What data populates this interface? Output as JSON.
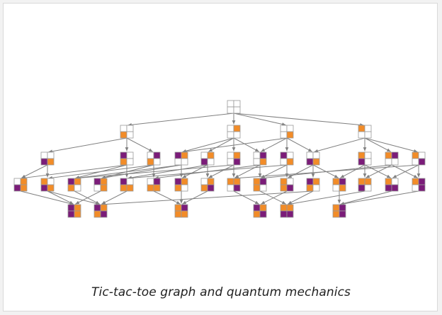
{
  "caption": "Tic-tac-toe graph and quantum mechanics",
  "colors": {
    "x_player": "#f28c28",
    "o_player": "#7b1c79",
    "empty_cell": "#ffffff",
    "cell_border": "#9a9a9a",
    "edge": "#808080",
    "background": "#ffffff"
  },
  "graph": {
    "board_size": "2x2",
    "cell_codes": "0 = empty, 1 = orange, 2 = purple",
    "levels": [
      {
        "level": 0,
        "boards": [
          {
            "id": "n0",
            "cells": [
              0,
              0,
              0,
              0
            ]
          }
        ]
      },
      {
        "level": 1,
        "boards": [
          {
            "id": "n1a",
            "cells": [
              0,
              0,
              1,
              0
            ]
          },
          {
            "id": "n1b",
            "cells": [
              0,
              1,
              0,
              0
            ]
          },
          {
            "id": "n1c",
            "cells": [
              0,
              0,
              0,
              1
            ]
          },
          {
            "id": "n1d",
            "cells": [
              1,
              0,
              0,
              0
            ]
          }
        ]
      },
      {
        "level": 2,
        "boards": [
          {
            "id": "n2a",
            "cells": [
              0,
              0,
              2,
              1
            ]
          },
          {
            "id": "n2b",
            "cells": [
              2,
              0,
              1,
              0
            ]
          },
          {
            "id": "n2c",
            "cells": [
              0,
              2,
              1,
              0
            ]
          },
          {
            "id": "n2d",
            "cells": [
              2,
              1,
              0,
              0
            ]
          },
          {
            "id": "n2e",
            "cells": [
              0,
              1,
              2,
              0
            ]
          },
          {
            "id": "n2f",
            "cells": [
              0,
              1,
              0,
              2
            ]
          },
          {
            "id": "n2g",
            "cells": [
              0,
              2,
              0,
              1
            ]
          },
          {
            "id": "n2h",
            "cells": [
              2,
              0,
              0,
              1
            ]
          },
          {
            "id": "n2i",
            "cells": [
              0,
              0,
              2,
              1
            ]
          },
          {
            "id": "n2j",
            "cells": [
              1,
              0,
              2,
              0
            ]
          },
          {
            "id": "n2k",
            "cells": [
              1,
              2,
              0,
              0
            ]
          },
          {
            "id": "n2l",
            "cells": [
              1,
              0,
              0,
              2
            ]
          }
        ]
      },
      {
        "level": 3,
        "boards": [
          {
            "id": "n3a",
            "cells": [
              0,
              1,
              2,
              1
            ]
          },
          {
            "id": "n3b",
            "cells": [
              1,
              0,
              2,
              1
            ]
          },
          {
            "id": "n3c",
            "cells": [
              2,
              1,
              1,
              0
            ]
          },
          {
            "id": "n3d",
            "cells": [
              2,
              1,
              0,
              1
            ]
          },
          {
            "id": "n3e",
            "cells": [
              2,
              0,
              1,
              1
            ]
          },
          {
            "id": "n3f",
            "cells": [
              0,
              2,
              1,
              1
            ]
          },
          {
            "id": "n3g",
            "cells": [
              2,
              1,
              1,
              0
            ]
          },
          {
            "id": "n3h",
            "cells": [
              0,
              1,
              1,
              2
            ]
          },
          {
            "id": "n3i",
            "cells": [
              1,
              1,
              0,
              2
            ]
          },
          {
            "id": "n3j",
            "cells": [
              1,
              2,
              1,
              0
            ]
          },
          {
            "id": "n3k",
            "cells": [
              1,
              0,
              1,
              2
            ]
          },
          {
            "id": "n3l",
            "cells": [
              2,
              1,
              1,
              0
            ]
          },
          {
            "id": "n3m",
            "cells": [
              1,
              2,
              0,
              1
            ]
          },
          {
            "id": "n3n",
            "cells": [
              1,
              1,
              2,
              0
            ]
          },
          {
            "id": "n3o",
            "cells": [
              1,
              0,
              2,
              2
            ]
          },
          {
            "id": "n3p",
            "cells": [
              1,
              2,
              0,
              2
            ]
          }
        ]
      },
      {
        "level": 4,
        "boards": [
          {
            "id": "n4a",
            "cells": [
              2,
              1,
              2,
              1
            ]
          },
          {
            "id": "n4b",
            "cells": [
              2,
              1,
              1,
              2
            ]
          },
          {
            "id": "n4c",
            "cells": [
              1,
              2,
              1,
              1
            ]
          },
          {
            "id": "n4d",
            "cells": [
              2,
              1,
              1,
              2
            ]
          },
          {
            "id": "n4e",
            "cells": [
              1,
              1,
              2,
              2
            ]
          },
          {
            "id": "n4f",
            "cells": [
              1,
              2,
              1,
              2
            ]
          }
        ]
      }
    ],
    "edges": [
      [
        "n0",
        "n1a"
      ],
      [
        "n0",
        "n1b"
      ],
      [
        "n0",
        "n1c"
      ],
      [
        "n0",
        "n1d"
      ],
      [
        "n1a",
        "n2a"
      ],
      [
        "n1a",
        "n2b"
      ],
      [
        "n1a",
        "n2c"
      ],
      [
        "n1b",
        "n2d"
      ],
      [
        "n1b",
        "n2e"
      ],
      [
        "n1b",
        "n2f"
      ],
      [
        "n1b",
        "n2g"
      ],
      [
        "n1c",
        "n2g"
      ],
      [
        "n1c",
        "n2h"
      ],
      [
        "n1c",
        "n2i"
      ],
      [
        "n1c",
        "n2d"
      ],
      [
        "n1d",
        "n2j"
      ],
      [
        "n1d",
        "n2k"
      ],
      [
        "n1d",
        "n2l"
      ],
      [
        "n1d",
        "n2i"
      ],
      [
        "n2a",
        "n3a"
      ],
      [
        "n2a",
        "n3b"
      ],
      [
        "n2b",
        "n3c"
      ],
      [
        "n2b",
        "n3e"
      ],
      [
        "n2b",
        "n3a"
      ],
      [
        "n2c",
        "n3f"
      ],
      [
        "n2c",
        "n3d"
      ],
      [
        "n2c",
        "n3b"
      ],
      [
        "n2d",
        "n3c"
      ],
      [
        "n2d",
        "n3g"
      ],
      [
        "n2d",
        "n3d"
      ],
      [
        "n2e",
        "n3e"
      ],
      [
        "n2e",
        "n3h"
      ],
      [
        "n2e",
        "n3g"
      ],
      [
        "n2f",
        "n3h"
      ],
      [
        "n2f",
        "n3i"
      ],
      [
        "n2f",
        "n3c"
      ],
      [
        "n2g",
        "n3f"
      ],
      [
        "n2g",
        "n3i"
      ],
      [
        "n2g",
        "n3j"
      ],
      [
        "n2h",
        "n3j"
      ],
      [
        "n2h",
        "n3k"
      ],
      [
        "n2h",
        "n3e"
      ],
      [
        "n2i",
        "n3l"
      ],
      [
        "n2i",
        "n3k"
      ],
      [
        "n2i",
        "n3m"
      ],
      [
        "n2j",
        "n3m"
      ],
      [
        "n2j",
        "n3n"
      ],
      [
        "n2j",
        "n3o"
      ],
      [
        "n2k",
        "n3n"
      ],
      [
        "n2k",
        "n3p"
      ],
      [
        "n2k",
        "n3j"
      ],
      [
        "n2l",
        "n3o"
      ],
      [
        "n2l",
        "n3p"
      ],
      [
        "n2l",
        "n3i"
      ],
      [
        "n3a",
        "n4a"
      ],
      [
        "n3b",
        "n4a"
      ],
      [
        "n3c",
        "n4b"
      ],
      [
        "n3d",
        "n4a"
      ],
      [
        "n3e",
        "n4b"
      ],
      [
        "n3f",
        "n4c"
      ],
      [
        "n3g",
        "n4c"
      ],
      [
        "n3h",
        "n4c"
      ],
      [
        "n3i",
        "n4d"
      ],
      [
        "n3j",
        "n4e"
      ],
      [
        "n3k",
        "n4d"
      ],
      [
        "n3l",
        "n4e"
      ],
      [
        "n3m",
        "n4f"
      ],
      [
        "n3n",
        "n4e"
      ],
      [
        "n3o",
        "n4f"
      ],
      [
        "n3p",
        "n4f"
      ],
      [
        "n3b",
        "n4b"
      ],
      [
        "n3l",
        "n4b"
      ]
    ]
  }
}
